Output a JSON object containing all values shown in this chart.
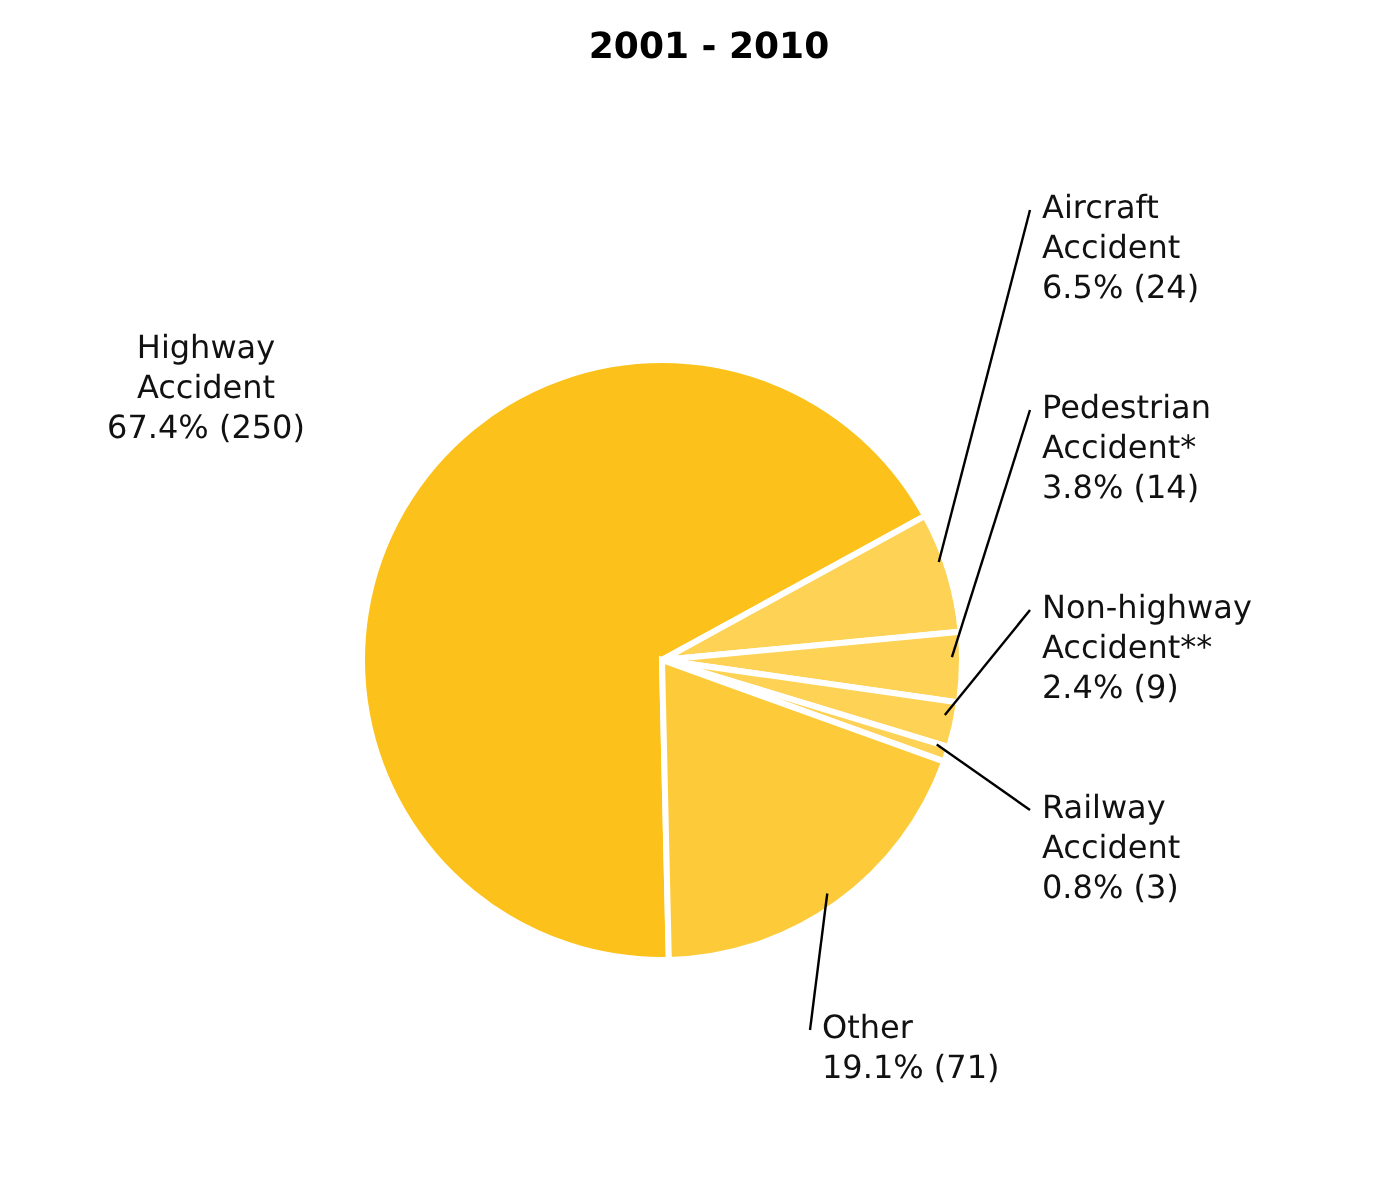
{
  "chart_data": {
    "type": "pie",
    "title": "2001 - 2010",
    "categories": [
      "Highway Accident",
      "Aircraft Accident",
      "Pedestrian Accident*",
      "Non-highway Accident**",
      "Railway Accident",
      "Other"
    ],
    "values": [
      250,
      24,
      14,
      9,
      3,
      71
    ],
    "value_labels": [
      "67.4% (250)",
      "6.5% (24)",
      "3.8% (14)",
      "2.4% (9)",
      "0.8% (3)",
      "19.1% (71)"
    ],
    "colors": [
      "#fcc21b",
      "#fdd255",
      "#fdd255",
      "#fdd255",
      "#fdd255",
      "#fdcb3a"
    ]
  }
}
